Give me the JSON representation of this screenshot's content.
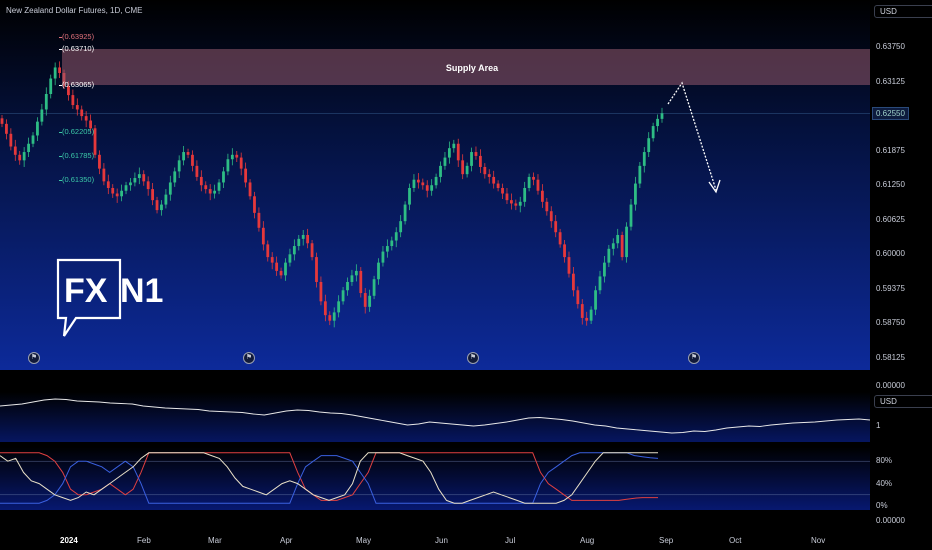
{
  "header": {
    "title": "New Zealand Dollar Futures, 1D, CME"
  },
  "chart_data": [
    {
      "type": "candlestick",
      "title": "New Zealand Dollar Futures, 1D, CME",
      "currency": "USD",
      "y_ticks": [
        "0.63750",
        "0.63125",
        "0.62550",
        "0.61875",
        "0.61250",
        "0.60625",
        "0.60000",
        "0.59375",
        "0.58750",
        "0.58125"
      ],
      "current_price": "0.62550",
      "ylim": [
        0.58125,
        0.6395
      ],
      "x_labels": [
        "2024",
        "Feb",
        "Mar",
        "Apr",
        "May",
        "Jun",
        "Jul",
        "Aug",
        "Sep",
        "Oct",
        "Nov"
      ],
      "supply_area": {
        "label": "Supply Area",
        "from": 0.63065,
        "to": 0.6371
      },
      "fib_levels": [
        {
          "label": "(0.63925)",
          "value": 0.63925,
          "color": "#e0707a"
        },
        {
          "label": "(0.63710)",
          "value": 0.6371,
          "color": "#ffffff"
        },
        {
          "label": "(0.63065)",
          "value": 0.63065,
          "color": "#ffffff"
        },
        {
          "label": "(0.62205)",
          "value": 0.62205,
          "color": "#3cc8a8"
        },
        {
          "label": "(0.61785)",
          "value": 0.61785,
          "color": "#3cc8a8"
        },
        {
          "label": "(0.61350)",
          "value": 0.6135,
          "color": "#3cc8a8"
        }
      ],
      "candles_close": [
        0.6236,
        0.6218,
        0.6195,
        0.618,
        0.617,
        0.6185,
        0.62,
        0.6215,
        0.624,
        0.6262,
        0.629,
        0.6318,
        0.6338,
        0.6328,
        0.6305,
        0.6288,
        0.627,
        0.6262,
        0.625,
        0.6242,
        0.6228,
        0.618,
        0.6155,
        0.6132,
        0.612,
        0.611,
        0.6105,
        0.6115,
        0.6125,
        0.613,
        0.6138,
        0.6145,
        0.6132,
        0.6118,
        0.6098,
        0.608,
        0.609,
        0.6108,
        0.613,
        0.615,
        0.617,
        0.6185,
        0.618,
        0.616,
        0.614,
        0.6125,
        0.6118,
        0.611,
        0.6115,
        0.613,
        0.615,
        0.6172,
        0.618,
        0.6175,
        0.6155,
        0.613,
        0.6105,
        0.6075,
        0.6048,
        0.6018,
        0.5995,
        0.5985,
        0.597,
        0.5962,
        0.5985,
        0.6,
        0.6015,
        0.6028,
        0.6035,
        0.602,
        0.5995,
        0.595,
        0.5915,
        0.589,
        0.588,
        0.5895,
        0.5915,
        0.5935,
        0.595,
        0.5962,
        0.597,
        0.593,
        0.5905,
        0.5925,
        0.5955,
        0.5985,
        0.6005,
        0.6015,
        0.6025,
        0.604,
        0.606,
        0.609,
        0.612,
        0.6135,
        0.613,
        0.6125,
        0.6115,
        0.6125,
        0.614,
        0.616,
        0.6175,
        0.6192,
        0.62,
        0.617,
        0.6145,
        0.616,
        0.6185,
        0.6178,
        0.6158,
        0.6145,
        0.614,
        0.6128,
        0.612,
        0.611,
        0.6098,
        0.6092,
        0.6088,
        0.6095,
        0.612,
        0.614,
        0.6135,
        0.6115,
        0.6095,
        0.6078,
        0.606,
        0.604,
        0.6018,
        0.5995,
        0.5965,
        0.5935,
        0.591,
        0.5885,
        0.588,
        0.59,
        0.5935,
        0.596,
        0.5985,
        0.601,
        0.602,
        0.6035,
        0.5995,
        0.605,
        0.609,
        0.6128,
        0.616,
        0.6185,
        0.621,
        0.6232,
        0.6245,
        0.6255
      ],
      "series": [
        {
          "name": "USD",
          "type": "line",
          "values": [
            1.2,
            1.3,
            1.4,
            1.6,
            1.8,
            1.9,
            1.85,
            1.7,
            1.65,
            1.6,
            1.5,
            1.45,
            1.4,
            1.2,
            1.1,
            1.0,
            0.95,
            0.9,
            0.85,
            0.7,
            0.65,
            0.6,
            0.55,
            0.4,
            0.3,
            0.5,
            0.7,
            0.8,
            0.75,
            0.6,
            0.5,
            0.45,
            0.3,
            0.1,
            -0.1,
            -0.3,
            -0.5,
            -0.7,
            -0.6,
            -0.4,
            -0.5,
            -0.6,
            -0.7,
            -0.8,
            -0.7,
            -0.55,
            -0.4,
            -0.2,
            0.0,
            0.05,
            -0.05,
            -0.15,
            -0.3,
            -0.5,
            -0.7,
            -0.8,
            -1.0,
            -1.1,
            -1.2,
            -1.3,
            -1.4,
            -1.5,
            -1.45,
            -1.3,
            -1.35,
            -1.2,
            -1.0,
            -0.9,
            -0.8,
            -0.85,
            -0.7,
            -0.6,
            -0.5,
            -0.45,
            -0.4,
            -0.3,
            -0.2,
            -0.15,
            -0.1,
            -0.2
          ]
        }
      ],
      "indicator_scale": "1"
    },
    {
      "type": "line",
      "ylabel": "",
      "y_ticks": [
        "80%",
        "40%",
        "0%"
      ],
      "ylim": [
        0,
        100
      ],
      "series": [
        {
          "name": "",
          "color": "#e04040",
          "values": [
            95,
            95,
            95,
            95,
            95,
            95,
            90,
            80,
            60,
            30,
            20,
            20,
            25,
            30,
            40,
            30,
            20,
            30,
            60,
            95,
            95,
            95,
            95,
            95,
            95,
            95,
            95,
            95,
            95,
            95,
            95,
            95,
            95,
            95,
            95,
            95,
            95,
            95,
            60,
            30,
            20,
            10,
            10,
            10,
            15,
            20,
            40,
            60,
            95,
            95,
            95,
            95,
            95,
            95,
            95,
            95,
            95,
            95,
            95,
            95,
            95,
            95,
            95,
            95,
            95,
            95,
            95,
            95,
            95,
            60,
            40,
            30,
            20,
            10,
            10,
            10,
            10,
            10,
            10,
            10,
            12,
            14,
            15,
            15,
            15
          ]
        },
        {
          "name": "",
          "color": "#3a60e0",
          "values": [
            5,
            5,
            5,
            5,
            5,
            5,
            10,
            20,
            40,
            70,
            80,
            80,
            75,
            70,
            60,
            70,
            80,
            70,
            40,
            5,
            5,
            5,
            5,
            5,
            5,
            5,
            5,
            5,
            5,
            5,
            5,
            5,
            5,
            5,
            5,
            5,
            5,
            5,
            40,
            70,
            80,
            90,
            90,
            90,
            85,
            80,
            60,
            40,
            5,
            5,
            5,
            5,
            5,
            5,
            5,
            5,
            5,
            5,
            5,
            5,
            5,
            5,
            5,
            5,
            5,
            5,
            5,
            5,
            5,
            40,
            60,
            70,
            80,
            90,
            95,
            95,
            95,
            95,
            95,
            95,
            95,
            90,
            88,
            86,
            85
          ]
        },
        {
          "name": "",
          "color": "#e8e0c8",
          "values": [
            90,
            80,
            85,
            60,
            45,
            40,
            30,
            20,
            15,
            10,
            15,
            25,
            20,
            30,
            40,
            50,
            60,
            70,
            85,
            95,
            95,
            95,
            95,
            95,
            95,
            95,
            95,
            90,
            85,
            70,
            50,
            35,
            30,
            25,
            20,
            30,
            40,
            45,
            40,
            30,
            20,
            15,
            10,
            15,
            20,
            40,
            80,
            95,
            95,
            95,
            95,
            95,
            90,
            85,
            80,
            60,
            30,
            10,
            5,
            5,
            10,
            15,
            20,
            25,
            20,
            15,
            10,
            5,
            5,
            5,
            5,
            5,
            10,
            20,
            40,
            60,
            80,
            95,
            95,
            95,
            95,
            95,
            95,
            95,
            95
          ]
        }
      ]
    }
  ],
  "colors": {
    "up": "#2ebd85",
    "down": "#e5383b",
    "supply": "#9a5a6e",
    "arrow": "#ffffff"
  },
  "sub1": {
    "currency": "USD",
    "tick": "1",
    "zero": "0.00000"
  },
  "sub2": {
    "zero": "0.00000"
  },
  "icons": [
    "flag-icon",
    "flag-icon",
    "flag-icon",
    "flag-icon"
  ]
}
